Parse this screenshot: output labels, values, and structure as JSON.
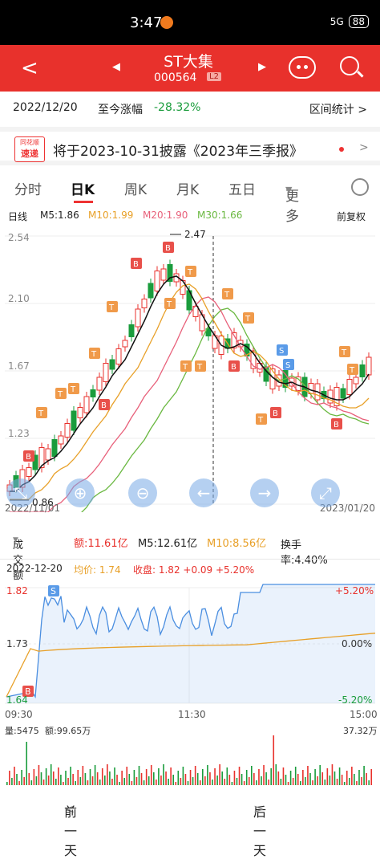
{
  "status": {
    "time": "3:47",
    "battery": "88",
    "signal": "5G"
  },
  "header": {
    "back": "<",
    "prev": "◀",
    "next": "▶",
    "name": "ST大集",
    "code": "000564",
    "level": "L2"
  },
  "range": {
    "date": "2022/12/20",
    "label": "至今涨幅",
    "value": "-28.32%",
    "stat_label": "区间统计",
    "arrow": ">"
  },
  "news": {
    "logo_top": "同花顺",
    "logo_bottom": "速递",
    "text": "将于2023-10-31披露《2023年三季报》",
    "arrow": ">"
  },
  "tabs": [
    {
      "label": "分时",
      "active": false
    },
    {
      "label": "日K",
      "active": true
    },
    {
      "label": "周K",
      "active": false
    },
    {
      "label": "月K",
      "active": false
    },
    {
      "label": "五日",
      "active": false
    },
    {
      "label": "更多",
      "active": false
    }
  ],
  "ma": {
    "type": "日线",
    "m5": "M5:1.86",
    "m10": "M10:1.99",
    "m20": "M20:1.90",
    "m30": "M30:1.66",
    "adj": "前复权"
  },
  "chart": {
    "price_labels": [
      "2.54",
      "2.10",
      "1.67",
      "1.23"
    ],
    "high_label": "2.47",
    "low_label": "0.86",
    "start_date": "2022/11/01",
    "end_date": "2023/01/20",
    "colors": {
      "up": "#e8312c",
      "down": "#1a9c3c",
      "m5": "#111111",
      "m10": "#e8a028",
      "m20": "#e8607a",
      "m30": "#6ab840",
      "marker_b": "#e8504a",
      "marker_t": "#f09a4a",
      "marker_s": "#5a9be8"
    }
  },
  "volume": {
    "label": "成交额",
    "amount": "额:11.61亿",
    "m5": "M5:12.61亿",
    "m10": "M10:8.56亿",
    "turnover": "换手率:4.40%"
  },
  "intraday": {
    "date": "2022-12-20",
    "avg": "均价: 1.74",
    "close": "收盘: 1.82 +0.09 +5.20%",
    "price_top": "1.82",
    "price_mid": "1.73",
    "price_bot": "1.64",
    "pct_top": "+5.20%",
    "pct_mid": "0.00%",
    "pct_bot": "-5.20%",
    "time_start": "09:30",
    "time_mid": "11:30",
    "time_end": "15:00",
    "vol_label": "量:5475",
    "amt_label": "额:99.65万",
    "vol_max": "37.32万"
  },
  "nav": {
    "prev": "前一天",
    "next": "后一天",
    "prev_arrow": "<",
    "next_arrow": ">"
  }
}
